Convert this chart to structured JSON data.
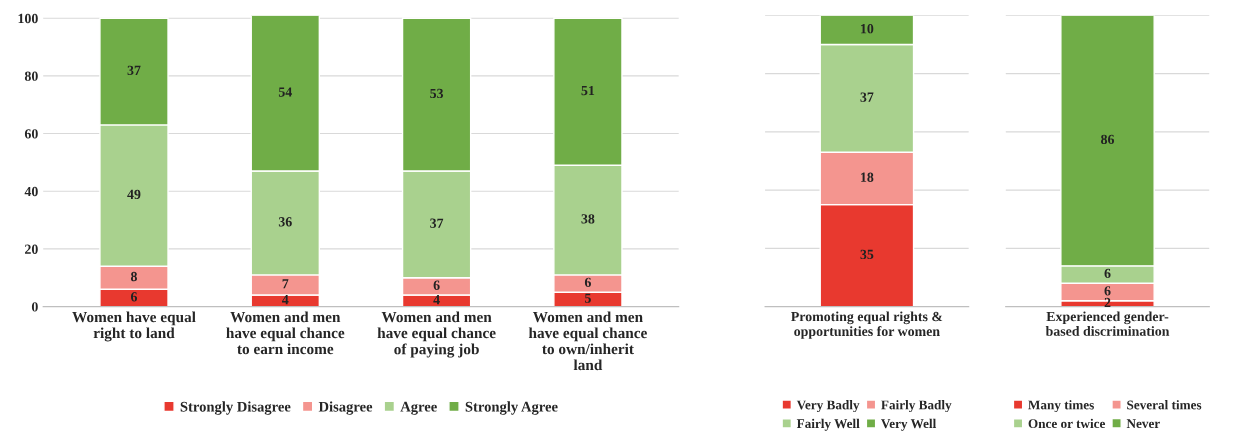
{
  "chart_data": [
    {
      "type": "bar",
      "stacked": true,
      "data_labels": true,
      "grid": "y",
      "legend": "bottom",
      "categories": [
        "Women have equal\nright to land",
        "Women and men\nhave equal chance\nto earn income",
        "Women and men\nhave equal chance\nof paying job",
        "Women and men\nhave equal chance\nto own/inherit\nland"
      ],
      "ylim": [
        0,
        101
      ],
      "yticks": [
        0,
        20,
        40,
        60,
        80,
        100
      ],
      "series": [
        {
          "name": "Strongly Disagree",
          "color": "#e8392f",
          "values": [
            6,
            4,
            4,
            5
          ]
        },
        {
          "name": "Disagree",
          "color": "#f4958f",
          "values": [
            8,
            7,
            6,
            6
          ]
        },
        {
          "name": "Agree",
          "color": "#a9d18e",
          "values": [
            49,
            36,
            37,
            38
          ]
        },
        {
          "name": "Strongly Agree",
          "color": "#70ad47",
          "values": [
            37,
            54,
            53,
            51
          ]
        }
      ]
    },
    {
      "type": "bar",
      "stacked": true,
      "data_labels": true,
      "grid": "y",
      "legend": "bottom",
      "tick_labels": "x",
      "categories": [
        "Promoting equal rights &\nopportunities for women"
      ],
      "ylim": [
        0,
        100
      ],
      "yticks": [
        {
          "value": 0,
          "label": null
        },
        {
          "value": 20,
          "label": null
        },
        {
          "value": 40,
          "label": null
        },
        {
          "value": 60,
          "label": null
        },
        {
          "value": 80,
          "label": null
        },
        {
          "value": 100,
          "label": null
        }
      ],
      "series": [
        {
          "name": "Very Badly",
          "color": "#e8392f",
          "values": [
            35
          ]
        },
        {
          "name": "Fairly Badly",
          "color": "#f4958f",
          "values": [
            18
          ]
        },
        {
          "name": "Fairly Well",
          "color": "#a9d18e",
          "values": [
            37
          ]
        },
        {
          "name": "Very Well",
          "color": "#70ad47",
          "values": [
            10
          ]
        }
      ]
    },
    {
      "type": "bar",
      "stacked": true,
      "data_labels": true,
      "grid": "y",
      "legend": "bottom",
      "tick_labels": "x",
      "categories": [
        "Experienced gender-\nbased discrimination"
      ],
      "ylim": [
        0,
        100
      ],
      "yticks": [
        {
          "value": 0,
          "label": null
        },
        {
          "value": 20,
          "label": null
        },
        {
          "value": 40,
          "label": null
        },
        {
          "value": 60,
          "label": null
        },
        {
          "value": 80,
          "label": null
        },
        {
          "value": 100,
          "label": null
        }
      ],
      "series": [
        {
          "name": "Many times",
          "color": "#e8392f",
          "values": [
            2
          ]
        },
        {
          "name": "Several times",
          "color": "#f4958f",
          "values": [
            6
          ]
        },
        {
          "name": "Once or twice",
          "color": "#a9d18e",
          "values": [
            6
          ]
        },
        {
          "name": "Never",
          "color": "#70ad47",
          "values": [
            86
          ]
        }
      ]
    }
  ]
}
